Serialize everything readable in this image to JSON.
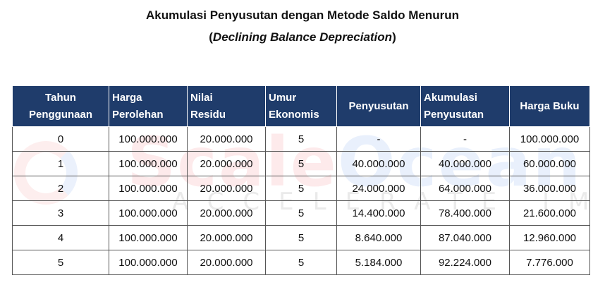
{
  "title": {
    "line1": "Akumulasi Penyusutan dengan Metode Saldo Menurun",
    "line2_open": "(",
    "line2_italic": "Declining Balance Depreciation",
    "line2_close": ")"
  },
  "watermark": {
    "brand_part1": "Scale",
    "brand_part2": "Ocean",
    "tagline": "ACCELERATE IMPACT"
  },
  "table": {
    "headers": [
      [
        "Tahun",
        "Penggunaan"
      ],
      [
        "Harga",
        "Perolehan"
      ],
      [
        "Nilai",
        "Residu"
      ],
      [
        "Umur",
        "Ekonomis"
      ],
      [
        "Penyusutan"
      ],
      [
        "Akumulasi",
        "Penyusutan"
      ],
      [
        "Harga Buku"
      ]
    ],
    "rows": [
      [
        "0",
        "100.000.000",
        "20.000.000",
        "5",
        "-",
        "-",
        "100.000.000"
      ],
      [
        "1",
        "100.000.000",
        "20.000.000",
        "5",
        "40.000.000",
        "40.000.000",
        "60.000.000"
      ],
      [
        "2",
        "100.000.000",
        "20.000.000",
        "5",
        "24.000.000",
        "64.000.000",
        "36.000.000"
      ],
      [
        "3",
        "100.000.000",
        "20.000.000",
        "5",
        "14.400.000",
        "78.400.000",
        "21.600.000"
      ],
      [
        "4",
        "100.000.000",
        "20.000.000",
        "5",
        "8.640.000",
        "87.040.000",
        "12.960.000"
      ],
      [
        "5",
        "100.000.000",
        "20.000.000",
        "5",
        "5.184.000",
        "92.224.000",
        "7.776.000"
      ]
    ]
  }
}
